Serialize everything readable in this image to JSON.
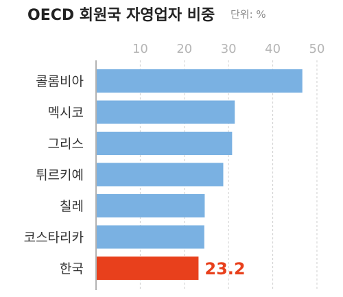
{
  "colors": {
    "bar": "#7ab1e2",
    "highlight": "#e8401c",
    "grid": "#cfcfcf",
    "axis": "#999999"
  },
  "chart_data": {
    "type": "bar",
    "orientation": "horizontal",
    "title": "OECD 회원국 자영업자 비중",
    "unit_label": "단위: %",
    "categories": [
      "콜롬비아",
      "멕시코",
      "그리스",
      "튀르키예",
      "칠레",
      "코스타리카",
      "한국"
    ],
    "values": [
      46.7,
      31.4,
      30.8,
      28.8,
      24.6,
      24.5,
      23.2
    ],
    "highlight_index": 6,
    "highlight_label": "23.2",
    "xticks": [
      10,
      20,
      30,
      40,
      50
    ],
    "xlim": [
      0,
      50
    ],
    "grid": true,
    "gridline_style": "dashed"
  }
}
